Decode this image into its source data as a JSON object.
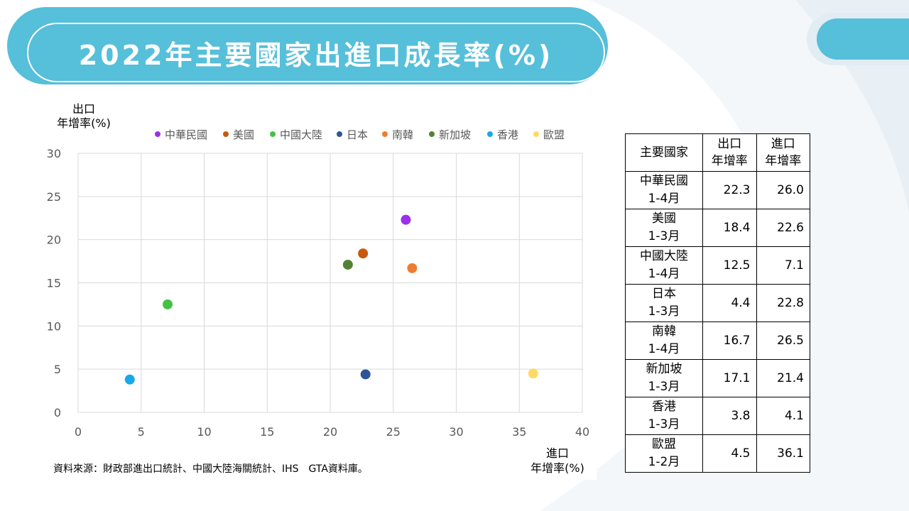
{
  "title": "2022年主要國家出進口成長率(%)",
  "source_note": "資料來源：財政部進出口統計、中國大陸海關統計、IHS　GTA資料庫。",
  "chart_data": {
    "type": "scatter",
    "ylabel_line1": "出口",
    "ylabel_line2": "年增率(%)",
    "xlabel_line1": "進口",
    "xlabel_line2": "年增率(%)",
    "xlim": [
      0,
      40
    ],
    "ylim": [
      0,
      30
    ],
    "x_ticks": [
      0,
      5,
      10,
      15,
      20,
      25,
      30,
      35,
      40
    ],
    "y_ticks": [
      0,
      5,
      10,
      15,
      20,
      25,
      30
    ],
    "grid": true,
    "legend_position": "top",
    "series": [
      {
        "name": "中華民國",
        "x": 26.0,
        "y": 22.3,
        "color": "#9b30e8"
      },
      {
        "name": "美國",
        "x": 22.6,
        "y": 18.4,
        "color": "#c55a11"
      },
      {
        "name": "中國大陸",
        "x": 7.1,
        "y": 12.5,
        "color": "#44c244"
      },
      {
        "name": "日本",
        "x": 22.8,
        "y": 4.4,
        "color": "#2f5597"
      },
      {
        "name": "南韓",
        "x": 26.5,
        "y": 16.7,
        "color": "#ed7d31"
      },
      {
        "name": "新加坡",
        "x": 21.4,
        "y": 17.1,
        "color": "#548235"
      },
      {
        "name": "香港",
        "x": 4.1,
        "y": 3.8,
        "color": "#1aa7e8"
      },
      {
        "name": "歐盟",
        "x": 36.1,
        "y": 4.5,
        "color": "#ffd966"
      }
    ]
  },
  "table": {
    "header_country": "主要國家",
    "header_export_line1": "出口",
    "header_export_line2": "年增率",
    "header_import_line1": "進口",
    "header_import_line2": "年增率",
    "rows": [
      {
        "country": "中華民國",
        "period": "1-4月",
        "export": "22.3",
        "import": "26.0"
      },
      {
        "country": "美國",
        "period": "1-3月",
        "export": "18.4",
        "import": "22.6"
      },
      {
        "country": "中國大陸",
        "period": "1-4月",
        "export": "12.5",
        "import": "7.1"
      },
      {
        "country": "日本",
        "period": "1-3月",
        "export": "4.4",
        "import": "22.8"
      },
      {
        "country": "南韓",
        "period": "1-4月",
        "export": "16.7",
        "import": "26.5"
      },
      {
        "country": "新加坡",
        "period": "1-3月",
        "export": "17.1",
        "import": "21.4"
      },
      {
        "country": "香港",
        "period": "1-3月",
        "export": "3.8",
        "import": "4.1"
      },
      {
        "country": "歐盟",
        "period": "1-2月",
        "export": "4.5",
        "import": "36.1"
      }
    ]
  }
}
